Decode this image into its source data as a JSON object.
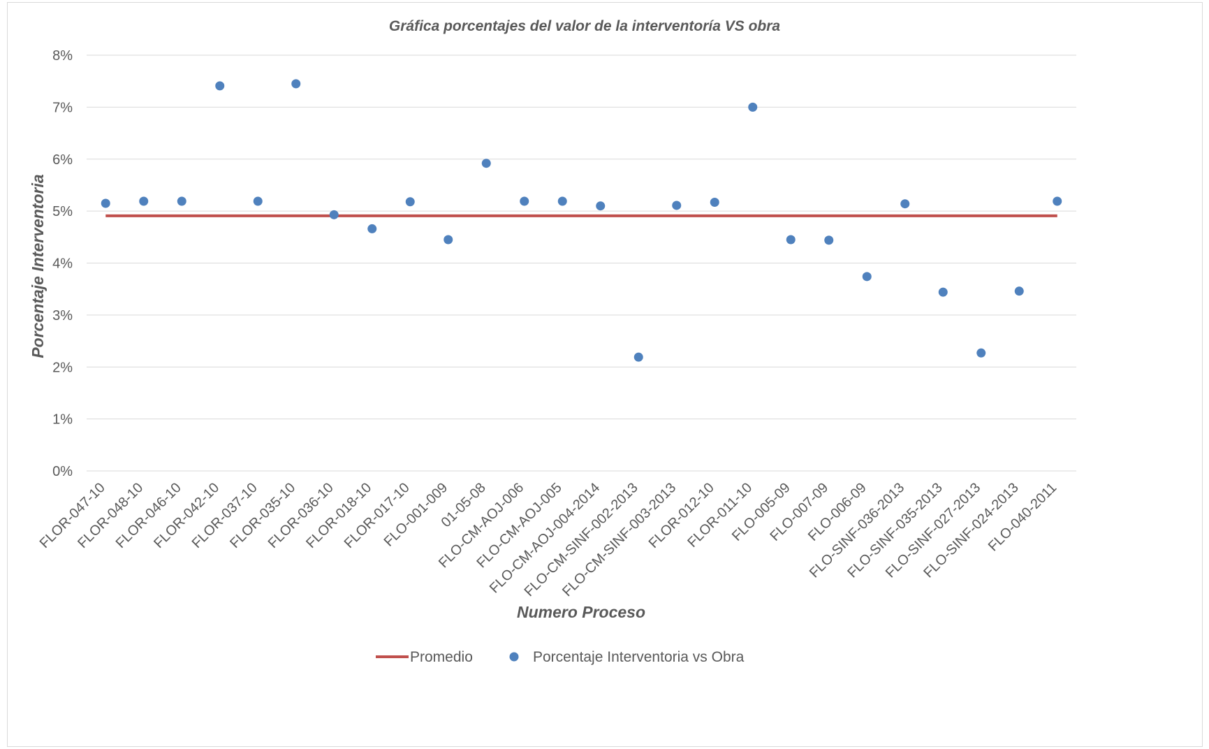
{
  "chart_data": {
    "type": "scatter",
    "title": "Gráfica porcentajes del valor de la interventoría VS obra",
    "xlabel": "Numero Proceso",
    "ylabel": "Porcentaje Interventoria",
    "ylim": [
      0,
      8
    ],
    "y_ticks": [
      "0%",
      "1%",
      "2%",
      "3%",
      "4%",
      "5%",
      "6%",
      "7%",
      "8%"
    ],
    "grid": true,
    "legend_position": "bottom",
    "categories": [
      "FLOR-047-10",
      "FLOR-048-10",
      "FLOR-046-10",
      "FLOR-042-10",
      "FLOR-037-10",
      "FLOR-035-10",
      "FLOR-036-10",
      "FLOR-018-10",
      "FLOR-017-10",
      "FLO-001-009",
      "01-05-08",
      "FLO-CM-AOJ-006",
      "FLO-CM-AOJ-005",
      "FLO-CM-AOJ-004-2014",
      "FLO-CM-SINF-002-2013",
      "FLO-CM-SINF-003-2013",
      "FLOR-012-10",
      "FLOR-011-10",
      "FLO-005-09",
      "FLO-007-09",
      "FLO-006-09",
      "FLO-SINF-036-2013",
      "FLO-SINF-035-2013",
      "FLO-SINF-027-2013",
      "FLO-SINF-024-2013",
      "FLO-040-2011"
    ],
    "series": [
      {
        "name": "Promedio",
        "kind": "line",
        "color": "#c0504d",
        "values": [
          4.91,
          4.91,
          4.91,
          4.91,
          4.91,
          4.91,
          4.91,
          4.91,
          4.91,
          4.91,
          4.91,
          4.91,
          4.91,
          4.91,
          4.91,
          4.91,
          4.91,
          4.91,
          4.91,
          4.91,
          4.91,
          4.91,
          4.91,
          4.91,
          4.91,
          4.91
        ]
      },
      {
        "name": "Porcentaje Interventoria vs Obra",
        "kind": "scatter",
        "color": "#4f81bd",
        "values": [
          5.15,
          5.19,
          5.19,
          7.41,
          5.19,
          7.45,
          4.93,
          4.66,
          5.18,
          4.45,
          5.92,
          5.19,
          5.19,
          5.1,
          2.19,
          5.11,
          5.17,
          7.0,
          4.45,
          4.44,
          3.74,
          5.14,
          3.44,
          2.27,
          3.46,
          5.19
        ]
      }
    ]
  }
}
